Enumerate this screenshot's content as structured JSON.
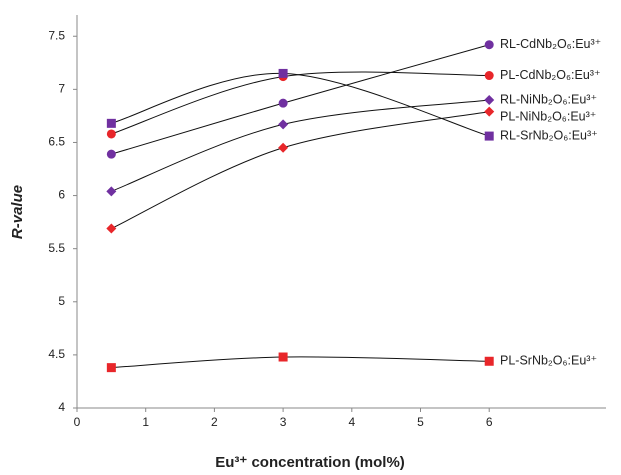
{
  "chart_data": {
    "type": "line",
    "x_label": "Eu³⁺ concentration (mol%)",
    "y_label": "R-value",
    "xlim": [
      0,
      7.7
    ],
    "xticks": [
      0,
      1,
      2,
      3,
      4,
      5,
      6
    ],
    "ylim": [
      4,
      7.7
    ],
    "yticks": [
      4,
      4.5,
      5,
      5.5,
      6,
      6.5,
      7,
      7.5
    ],
    "x": [
      0.5,
      3,
      6
    ],
    "series": [
      {
        "name": "RL-CdNb₂O₆:Eu³⁺",
        "color": "#7030a0",
        "marker": "circle",
        "values": [
          6.39,
          6.87,
          7.42
        ]
      },
      {
        "name": "PL-CdNb₂O₆:Eu³⁺",
        "color": "#e8262a",
        "marker": "circle",
        "values": [
          6.58,
          7.12,
          7.13
        ]
      },
      {
        "name": "RL-NiNb₂O₆:Eu³⁺",
        "color": "#7030a0",
        "marker": "diamond",
        "values": [
          6.04,
          6.67,
          6.9
        ]
      },
      {
        "name": "PL-NiNb₂O₆:Eu³⁺",
        "color": "#e8262a",
        "marker": "diamond",
        "values": [
          5.69,
          6.45,
          6.79
        ]
      },
      {
        "name": "RL-SrNb₂O₆:Eu³⁺",
        "color": "#7030a0",
        "marker": "square",
        "values": [
          6.68,
          7.15,
          6.56
        ]
      },
      {
        "name": "PL-SrNb₂O₆:Eu³⁺",
        "color": "#e8262a",
        "marker": "square",
        "values": [
          4.38,
          4.48,
          4.44
        ]
      }
    ]
  }
}
